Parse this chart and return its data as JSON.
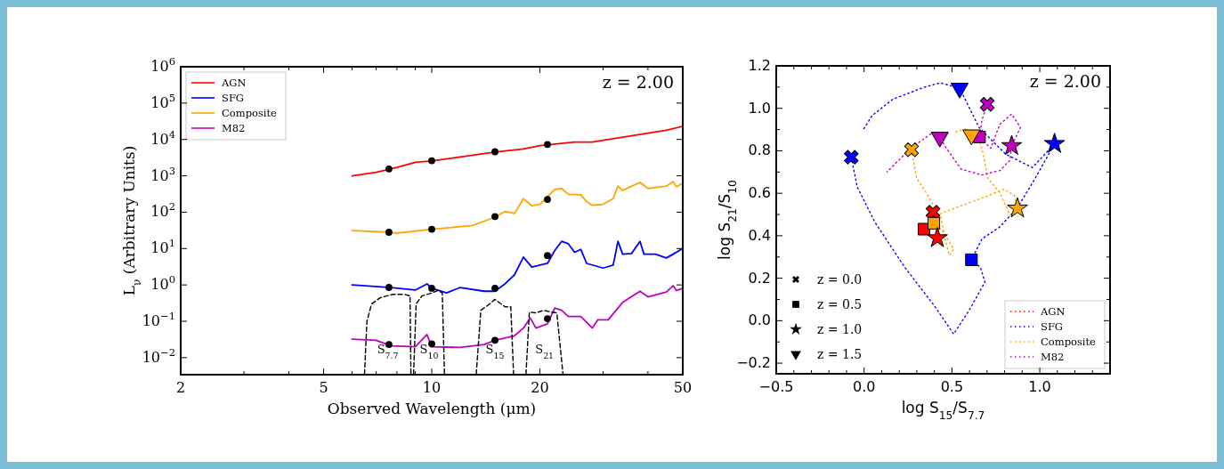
{
  "chart_data": [
    {
      "type": "line",
      "log": "xy",
      "legend": "top left",
      "xlabel": "Observed Wavelength (μm)",
      "ylabel": "L$_{ν}$ (Arbitrary Units)",
      "xlim": [
        2,
        50
      ],
      "ylim": [
        0.0034,
        1000000
      ],
      "xticks": [
        2,
        {
          "value": 3,
          "label": null
        },
        {
          "value": 4,
          "label": null
        },
        5,
        {
          "value": 6,
          "label": null
        },
        {
          "value": 7,
          "label": null
        },
        {
          "value": 8,
          "label": null
        },
        {
          "value": 9,
          "label": null
        },
        10,
        20,
        {
          "value": 30,
          "label": null
        },
        {
          "value": 40,
          "label": null
        },
        50
      ],
      "yticks": [
        {
          "value": 0.01,
          "label": "10$^{−2}$"
        },
        {
          "value": 0.1,
          "label": "10$^{−1}$"
        },
        {
          "value": 1,
          "label": "10$^{0}$"
        },
        {
          "value": 10,
          "label": "10$^{1}$"
        },
        {
          "value": 100,
          "label": "10$^{2}$"
        },
        {
          "value": 1000,
          "label": "10$^{3}$"
        },
        {
          "value": 10000,
          "label": "10$^{4}$"
        },
        {
          "value": 100000,
          "label": "10$^{5}$"
        },
        {
          "value": 1000000,
          "label": "10$^{6}$"
        }
      ],
      "annotations": [
        "z = 2.00",
        "S$_{7.7}$",
        "S$_{10}$",
        "S$_{15}$",
        "S$_{21}$"
      ],
      "series": [
        {
          "name": "AGN",
          "color": "#ff0000",
          "x": [
            6,
            7,
            8,
            9,
            10,
            12,
            15,
            18,
            20,
            25,
            28,
            30,
            35,
            40,
            45,
            50
          ],
          "values": [
            1000,
            1250,
            1700,
            2350,
            2550,
            3300,
            4500,
            5500,
            6800,
            8500,
            8500,
            9500,
            12000,
            15000,
            18000,
            23000
          ]
        },
        {
          "name": "SFG",
          "color": "#0000ff",
          "x": [
            6,
            7.7,
            9,
            9.7,
            10,
            11,
            12,
            14,
            15,
            16,
            17,
            18,
            19,
            20,
            21,
            22,
            23,
            24,
            25,
            26,
            27,
            29,
            30,
            32,
            33,
            34,
            36,
            38,
            39,
            42,
            45,
            47,
            50
          ],
          "values": [
            1.0,
            0.85,
            0.72,
            1.07,
            0.81,
            0.6,
            0.85,
            0.67,
            0.67,
            1.07,
            1.9,
            5.8,
            3.1,
            3.5,
            3.9,
            8.8,
            15.8,
            13.5,
            7.9,
            9.5,
            3.9,
            3.2,
            2.9,
            3.5,
            15.8,
            7,
            7.3,
            15.8,
            7,
            7,
            5.5,
            7,
            10
          ]
        },
        {
          "name": "Composite",
          "color": "#ffa500",
          "x": [
            6,
            7.7,
            8,
            10,
            13,
            15,
            16,
            17,
            18,
            19,
            20,
            21,
            22,
            23,
            24,
            26,
            27,
            28,
            30,
            32,
            33,
            34,
            38,
            40,
            45,
            47,
            48,
            50
          ],
          "values": [
            31,
            28,
            26.5,
            34,
            43,
            73,
            105,
            92,
            235,
            150,
            165,
            265,
            420,
            450,
            310,
            300,
            195,
            155,
            165,
            235,
            520,
            400,
            660,
            450,
            520,
            700,
            500,
            630
          ]
        },
        {
          "name": "M82",
          "color": "#bf00bf",
          "x": [
            6,
            7,
            7.7,
            9,
            9.7,
            10,
            12,
            14,
            15,
            17,
            18,
            18.8,
            19.5,
            21,
            22,
            23,
            24,
            26,
            28,
            29,
            31,
            34,
            38,
            40,
            45,
            47,
            48,
            50
          ],
          "values": [
            0.032,
            0.03,
            0.021,
            0.02,
            0.043,
            0.02,
            0.019,
            0.023,
            0.03,
            0.04,
            0.065,
            0.124,
            0.065,
            0.085,
            0.23,
            0.2,
            0.136,
            0.136,
            0.065,
            0.11,
            0.11,
            0.33,
            0.67,
            0.47,
            0.64,
            0.95,
            0.7,
            0.81
          ]
        },
        {
          "color": "#000000",
          "line_style": "dashed",
          "x": [
            6.5,
            6.6,
            6.8,
            7.2,
            7.8,
            8.4,
            8.7,
            8.75
          ],
          "values": [
            0.0035,
            0.1,
            0.3,
            0.45,
            0.55,
            0.55,
            0.5,
            0.0035
          ]
        },
        {
          "color": "#000000",
          "line_style": "dashed",
          "x": [
            8.9,
            9.05,
            9.4,
            10,
            10.4,
            10.7,
            10.85
          ],
          "values": [
            0.0035,
            0.3,
            0.5,
            0.6,
            0.7,
            0.6,
            0.0035
          ]
        },
        {
          "color": "#000000",
          "line_style": "dashed",
          "x": [
            13.3,
            13.7,
            14.5,
            15,
            15.6,
            16,
            16.6,
            16.9
          ],
          "values": [
            0.0035,
            0.2,
            0.3,
            0.4,
            0.3,
            0.25,
            0.25,
            0.0035
          ]
        },
        {
          "color": "#000000",
          "line_style": "dashed",
          "x": [
            18.3,
            18.7,
            19.5,
            20.5,
            21.5,
            22.3,
            23.2
          ],
          "values": [
            0.0035,
            0.18,
            0.17,
            0.2,
            0.18,
            0.17,
            0.0035
          ]
        },
        {
          "type": "scatter",
          "marker": "circle",
          "color": "#000000",
          "x": [
            7.6,
            10,
            15,
            21,
            7.6,
            10,
            15,
            21,
            7.6,
            10,
            15,
            21,
            7.6,
            10,
            15,
            21
          ],
          "values": [
            1550,
            2600,
            4600,
            7300,
            28,
            34,
            76,
            225,
            0.85,
            0.81,
            0.81,
            6.4,
            0.023,
            0.024,
            0.03,
            0.118
          ]
        }
      ]
    },
    {
      "type": "line",
      "legend": "bottom right",
      "line_style": "dotted",
      "xlabel": "log S$_{15}$/S$_{7.7}$",
      "ylabel": "log S$_{21}$/S$_{10}$",
      "xlim": [
        -0.5,
        1.4
      ],
      "ylim": [
        -0.25,
        1.2
      ],
      "xticks": [
        {
          "value": -0.5,
          "label": "−0.5"
        },
        {
          "value": -0.4,
          "label": null
        },
        {
          "value": -0.3,
          "label": null
        },
        {
          "value": -0.2,
          "label": null
        },
        {
          "value": -0.1,
          "label": null
        },
        {
          "value": 0,
          "label": "0.0"
        },
        {
          "value": 0.1,
          "label": null
        },
        {
          "value": 0.2,
          "label": null
        },
        {
          "value": 0.3,
          "label": null
        },
        {
          "value": 0.4,
          "label": null
        },
        0.5,
        {
          "value": 0.6,
          "label": null
        },
        {
          "value": 0.7,
          "label": null
        },
        {
          "value": 0.8,
          "label": null
        },
        {
          "value": 0.9,
          "label": null
        },
        {
          "value": 1,
          "label": "1.0"
        },
        {
          "value": 1.1,
          "label": null
        },
        {
          "value": 1.2,
          "label": null
        },
        {
          "value": 1.3,
          "label": null
        }
      ],
      "yticks": [
        {
          "value": -0.2,
          "label": "−0.2"
        },
        {
          "value": -0.1,
          "label": null
        },
        {
          "value": 0,
          "label": "0.0"
        },
        {
          "value": 0.1,
          "label": null
        },
        0.2,
        {
          "value": 0.3,
          "label": null
        },
        0.4,
        {
          "value": 0.5,
          "label": null
        },
        0.6,
        {
          "value": 0.7,
          "label": null
        },
        0.8,
        {
          "value": 0.9,
          "label": null
        },
        {
          "value": 1,
          "label": "1.0"
        },
        {
          "value": 1.1,
          "label": null
        },
        1.2
      ],
      "annotations": [
        "z = 2.00",
        "z = 0.0",
        "z = 0.5",
        "z = 1.0",
        "z = 1.5"
      ],
      "series": [
        {
          "name": "AGN",
          "color": "#ff0000"
        },
        {
          "name": "SFG",
          "color": "#0000ff",
          "x": [
            -0.073,
            -0.039,
            0.063,
            0.231,
            0.4,
            0.51,
            0.603,
            0.688,
            0.662,
            0.611,
            0.671,
            0.772,
            0.873,
            0.975,
            1.084,
            0.958,
            0.806,
            0.654,
            0.544,
            0.434,
            0.341,
            0.164,
            0.046,
            -0.005
          ],
          "values": [
            0.77,
            0.63,
            0.462,
            0.252,
            0.07,
            -0.063,
            0.056,
            0.182,
            0.252,
            0.287,
            0.385,
            0.441,
            0.532,
            0.672,
            0.833,
            0.721,
            0.784,
            0.91,
            1.095,
            1.12,
            1.099,
            1.043,
            0.966,
            0.899
          ]
        },
        {
          "name": "Composite",
          "color": "#ffa500",
          "x": [
            0.27,
            0.299,
            0.375,
            0.426,
            0.397,
            0.451,
            0.51,
            0.485,
            0.459,
            0.434,
            0.569,
            0.704,
            0.797,
            0.856,
            0.873,
            0.831,
            0.772,
            0.704,
            0.679,
            0.654,
            0.611,
            0.586,
            0.519
          ],
          "values": [
            0.805,
            0.672,
            0.574,
            0.49,
            0.459,
            0.42,
            0.336,
            0.308,
            0.392,
            0.504,
            0.546,
            0.588,
            0.619,
            0.588,
            0.529,
            0.497,
            0.602,
            0.672,
            0.784,
            0.854,
            0.875,
            0.903,
            0.889
          ]
        },
        {
          "name": "M82",
          "color": "#bf00bf",
          "x": [
            0.701,
            0.671,
            0.657,
            0.721,
            0.772,
            0.84,
            0.89,
            0.84,
            0.831,
            0.772,
            0.671,
            0.552,
            0.468,
            0.431,
            0.383,
            0.265,
            0.13
          ],
          "values": [
            1.019,
            0.945,
            0.865,
            0.812,
            0.924,
            0.973,
            0.91,
            0.823,
            0.756,
            0.707,
            0.686,
            0.714,
            0.812,
            0.864,
            0.882,
            0.812,
            0.7
          ]
        },
        {
          "type": "scatter",
          "marker": "cross",
          "color": "#000000",
          "colors": [
            "#ff0000",
            "#0000ff",
            "#ffa500",
            "#bf00bf"
          ],
          "x": [
            0.392,
            -0.073,
            0.27,
            0.701
          ],
          "values": [
            0.511,
            0.77,
            0.805,
            1.019
          ]
        },
        {
          "type": "scatter",
          "marker": "square",
          "color": "#000000",
          "colors": [
            "#ff0000",
            "#0000ff",
            "#ffa500",
            "#bf00bf"
          ],
          "x": [
            0.341,
            0.611,
            0.397,
            0.657
          ],
          "values": [
            0.431,
            0.287,
            0.459,
            0.865
          ]
        },
        {
          "type": "scatter",
          "marker": "star",
          "color": "#000000",
          "colors": [
            "#ff0000",
            "#0000ff",
            "#ffa500",
            "#bf00bf"
          ],
          "x": [
            0.417,
            1.084,
            0.873,
            0.84
          ],
          "values": [
            0.389,
            0.833,
            0.529,
            0.823
          ]
        },
        {
          "type": "scatter",
          "marker": "triangle",
          "color": "#000000",
          "colors": [
            "#0000ff",
            "#ffa500",
            "#bf00bf"
          ],
          "x": [
            0.544,
            0.611,
            0.431
          ],
          "values": [
            1.095,
            0.875,
            0.864
          ]
        }
      ]
    }
  ]
}
